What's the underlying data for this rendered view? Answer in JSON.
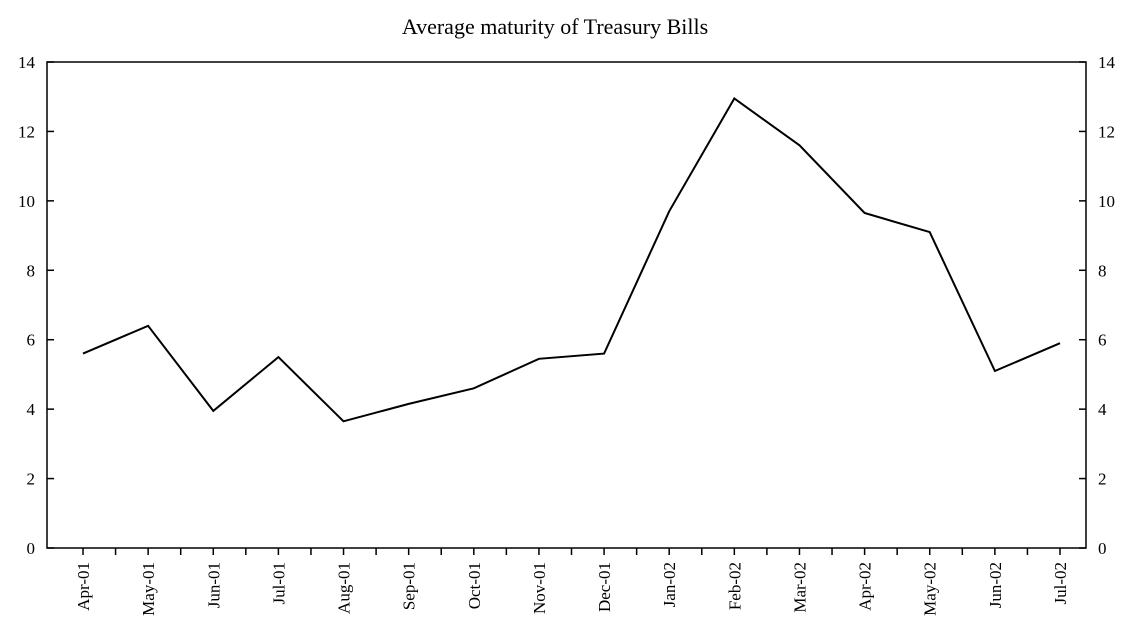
{
  "chart_data": {
    "type": "line",
    "title": "Average maturity of Treasury Bills",
    "xlabel": "",
    "ylabel": "",
    "ylim": [
      0,
      14
    ],
    "y_ticks": [
      0,
      2,
      4,
      6,
      8,
      10,
      12,
      14
    ],
    "secondary_y_axis": true,
    "grid": false,
    "legend": "none",
    "categories": [
      "Apr-01",
      "May-01",
      "Jun-01",
      "Jul-01",
      "Aug-01",
      "Sep-01",
      "Oct-01",
      "Nov-01",
      "Dec-01",
      "Jan-02",
      "Feb-02",
      "Mar-02",
      "Apr-02",
      "May-02",
      "Jun-02",
      "Jul-02"
    ],
    "series": [
      {
        "values": [
          5.6,
          6.4,
          3.95,
          5.5,
          3.65,
          4.15,
          4.6,
          5.45,
          5.6,
          9.7,
          12.95,
          11.6,
          9.65,
          9.1,
          5.1,
          5.9
        ],
        "color": "#000000"
      }
    ]
  }
}
